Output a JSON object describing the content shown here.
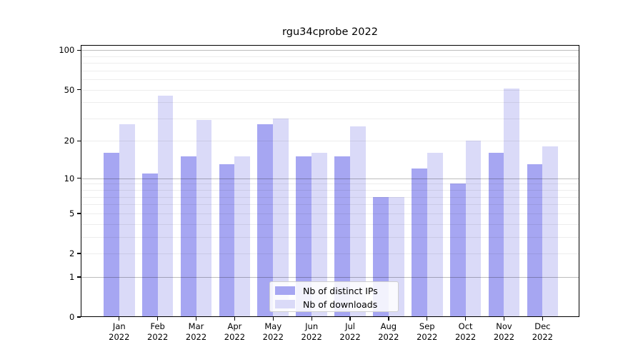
{
  "title": "rgu34cprobe 2022",
  "colors": {
    "distinct_ips_bar": "#a6a6f2",
    "downloads_bar": "#dadaf8",
    "grid_minor": "rgba(0,0,0,0.07)",
    "grid_major": "rgba(0,0,0,0.26)",
    "axis": "#000000",
    "legend_border": "#cfcfcf"
  },
  "legend": {
    "items": [
      {
        "label": "Nb of distinct IPs",
        "swatch": "distinct-ips-swatch"
      },
      {
        "label": "Nb of downloads",
        "swatch": "downloads-swatch"
      }
    ]
  },
  "chart_data": {
    "type": "bar",
    "title": "rgu34cprobe 2022",
    "categories": [
      "Jan 2022",
      "Feb 2022",
      "Mar 2022",
      "Apr 2022",
      "May 2022",
      "Jun 2022",
      "Jul 2022",
      "Aug 2022",
      "Sep 2022",
      "Oct 2022",
      "Nov 2022",
      "Dec 2022"
    ],
    "series": [
      {
        "name": "Nb of distinct IPs",
        "color": "#a6a6f2",
        "values": [
          16,
          11,
          15,
          13,
          27,
          15,
          15,
          7,
          12,
          9,
          16,
          13
        ]
      },
      {
        "name": "Nb of downloads",
        "color": "#dadaf8",
        "values": [
          27,
          45,
          29,
          15,
          30,
          16,
          26,
          7,
          16,
          20,
          51,
          18
        ]
      }
    ],
    "xlabel": "",
    "ylabel": "",
    "yscale": "log1p",
    "ylim": [
      0,
      108
    ],
    "yticks": [
      0,
      1,
      2,
      5,
      10,
      20,
      50,
      100
    ],
    "minor_yticks": [
      3,
      4,
      6,
      7,
      8,
      9,
      30,
      40,
      60,
      70,
      80,
      90
    ],
    "grid": true,
    "legend_position": "lower center"
  }
}
